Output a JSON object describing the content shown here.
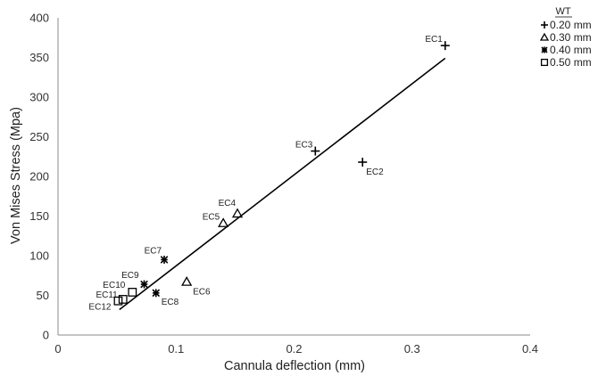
{
  "chart_data": {
    "type": "scatter",
    "title": "",
    "xlabel": "Cannula deflection (mm)",
    "ylabel": "Von Mises Stress (Mpa)",
    "xlim": [
      0,
      0.4
    ],
    "ylim": [
      0,
      400
    ],
    "x_ticks": [
      "0",
      "0.1",
      "0.2",
      "0.3",
      "0.4"
    ],
    "y_ticks": [
      "0",
      "50",
      "100",
      "150",
      "200",
      "250",
      "300",
      "350",
      "400"
    ],
    "grid": false,
    "legend": {
      "title": "WT",
      "placement": "top-right-outside",
      "entries": [
        "0.20 mm",
        "0.30 mm",
        "0.40 mm",
        "0.50 mm"
      ]
    },
    "series": [
      {
        "name": "0.20 mm",
        "marker": "plus",
        "points": [
          {
            "label": "EC1",
            "x": 0.328,
            "y": 365
          },
          {
            "label": "EC2",
            "x": 0.258,
            "y": 218
          },
          {
            "label": "EC3",
            "x": 0.218,
            "y": 232
          }
        ]
      },
      {
        "name": "0.30 mm",
        "marker": "triangle",
        "points": [
          {
            "label": "EC4",
            "x": 0.152,
            "y": 153
          },
          {
            "label": "EC5",
            "x": 0.14,
            "y": 141
          },
          {
            "label": "EC6",
            "x": 0.109,
            "y": 67
          }
        ]
      },
      {
        "name": "0.40 mm",
        "marker": "asterisk",
        "points": [
          {
            "label": "EC7",
            "x": 0.09,
            "y": 95
          },
          {
            "label": "EC8",
            "x": 0.083,
            "y": 53
          },
          {
            "label": "EC9",
            "x": 0.073,
            "y": 64
          }
        ]
      },
      {
        "name": "0.50 mm",
        "marker": "square",
        "points": [
          {
            "label": "EC10",
            "x": 0.063,
            "y": 54
          },
          {
            "label": "EC11",
            "x": 0.055,
            "y": 45
          },
          {
            "label": "EC12",
            "x": 0.051,
            "y": 43
          }
        ]
      }
    ],
    "trendline": {
      "x": [
        0.052,
        0.328
      ],
      "y": [
        32,
        349
      ]
    },
    "colors": {
      "marks": "#000000",
      "axis": "#888888",
      "text": "#222222"
    }
  }
}
